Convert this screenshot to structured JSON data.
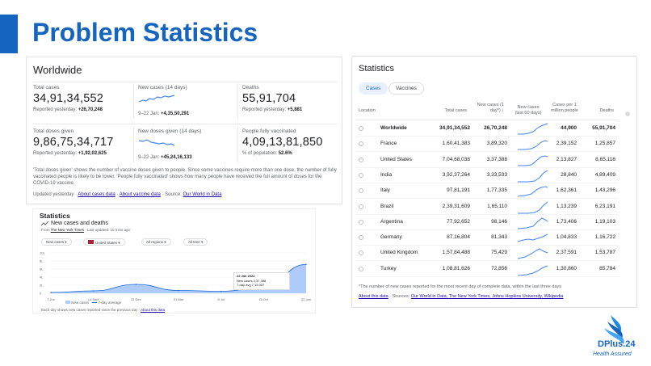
{
  "slide": {
    "title": "Problem Statistics"
  },
  "worldwide": {
    "title": "Worldwide",
    "stats": [
      {
        "label": "Total cases",
        "value": "34,91,34,552",
        "sub_label": "Reported yesterday: ",
        "sub_value": "+26,70,248"
      },
      {
        "label": "New cases (14 days)",
        "value": "",
        "sub_label": "9–22 Jan: ",
        "sub_value": "+4,35,50,291"
      },
      {
        "label": "Deaths",
        "value": "55,91,704",
        "sub_label": "Reported yesterday: ",
        "sub_value": "+5,881"
      },
      {
        "label": "Total doses given",
        "value": "9,86,75,34,717",
        "sub_label": "Reported yesterday: ",
        "sub_value": "+1,92,02,625"
      },
      {
        "label": "New doses given (14 days)",
        "value": "",
        "sub_label": "9–22 Jan: ",
        "sub_value": "+45,24,16,133"
      },
      {
        "label": "People fully vaccinated",
        "value": "4,09,13,81,850",
        "sub_label": "% of population: ",
        "sub_value": "52.6%"
      }
    ],
    "note": "'Total doses given' shows the number of vaccine doses given to people. Since some vaccines require more than one dose, the number of fully vaccinated people is likely to be lower. 'People fully vaccinated' shows how many people have received the full amount of doses for the COVID-19 vaccine.",
    "updated_prefix": "Updated yesterday · ",
    "link_cases": "About cases data",
    "sep": " · ",
    "link_vaccine": "About vaccine data",
    "source_prefix": " · Source: ",
    "link_source": "Our World in Data"
  },
  "mini_chart": {
    "title": "Statistics",
    "subtitle": "New cases and deaths",
    "from_prefix": "From ",
    "from_source": "The New York Times",
    "from_suffix": " · Last updated: 10 mins ago",
    "dropdowns": [
      "New cases",
      "United States",
      "All regions",
      "All time"
    ],
    "tooltip_date": "22 Jan 2022",
    "tooltip_new": "New cases  3,37,388",
    "tooltip_avg": "7-day avg  7,15,007",
    "legend_cases": "New cases",
    "legend_avg": "7-day average",
    "footer": "Each day shows new cases reported since the previous day · ",
    "footer_link": "About this data"
  },
  "chart_data": {
    "type": "area",
    "title": "New cases and deaths",
    "x": [
      "7 Jun",
      "14 Sept",
      "22 Dec",
      "31 Mar",
      "8 Jul",
      "15 Oct",
      "22 Jan"
    ],
    "y_ticks": [
      "0",
      "2L",
      "4L",
      "6L",
      "8L",
      "10L"
    ],
    "series": [
      {
        "name": "7-day average",
        "values": [
          0.2,
          0.6,
          2.2,
          0.7,
          0.5,
          1.4,
          7.15
        ]
      }
    ],
    "ylim": [
      0,
      10
    ]
  },
  "statistics": {
    "title": "Statistics",
    "tabs": [
      "Cases",
      "Vaccines"
    ],
    "headers": {
      "location": "Location",
      "total": "Total cases",
      "new": "New cases (1 day*)",
      "trend": "New cases (last 60 days)",
      "permil": "Cases per 1 million people",
      "deaths": "Deaths"
    },
    "rows": [
      {
        "name": "Worldwide",
        "total": "34,91,34,552",
        "new": "26,70,248",
        "permil": "44,900",
        "deaths": "55,91,704"
      },
      {
        "name": "France",
        "total": "1,60,41,383",
        "new": "3,89,320",
        "permil": "2,39,152",
        "deaths": "1,25,857"
      },
      {
        "name": "United States",
        "total": "7,04,68,038",
        "new": "3,37,388",
        "permil": "2,13,827",
        "deaths": "8,65,116"
      },
      {
        "name": "India",
        "total": "3,92,37,264",
        "new": "3,33,533",
        "permil": "28,840",
        "deaths": "4,89,409"
      },
      {
        "name": "Italy",
        "total": "97,81,191",
        "new": "1,77,335",
        "permil": "1,62,361",
        "deaths": "1,43,296"
      },
      {
        "name": "Brazil",
        "total": "2,39,31,609",
        "new": "1,65,110",
        "permil": "1,13,239",
        "deaths": "6,23,191"
      },
      {
        "name": "Argentina",
        "total": "77,92,652",
        "new": "98,146",
        "permil": "1,73,406",
        "deaths": "1,19,103"
      },
      {
        "name": "Germany",
        "total": "87,16,804",
        "new": "81,343",
        "permil": "1,04,833",
        "deaths": "1,16,722"
      },
      {
        "name": "United Kingdom",
        "total": "1,57,84,488",
        "new": "75,429",
        "permil": "2,37,591",
        "deaths": "1,53,787"
      },
      {
        "name": "Turkey",
        "total": "1,08,81,626",
        "new": "72,856",
        "permil": "1,30,860",
        "deaths": "85,784"
      }
    ],
    "footnote": "*The number of new cases reported for the most recent day of complete data, within the last three days",
    "about": "About this data",
    "sources_prefix": " · Sources: ",
    "sources": "Our World in Data, The New York Times, Johns Hopkins University, Wikipedia"
  },
  "logo": {
    "name": "DPlus.24",
    "tagline": "Health Assured"
  },
  "colors": {
    "accent": "#1565c0",
    "chart_blue": "#4285f4",
    "link": "#1a0dab"
  }
}
